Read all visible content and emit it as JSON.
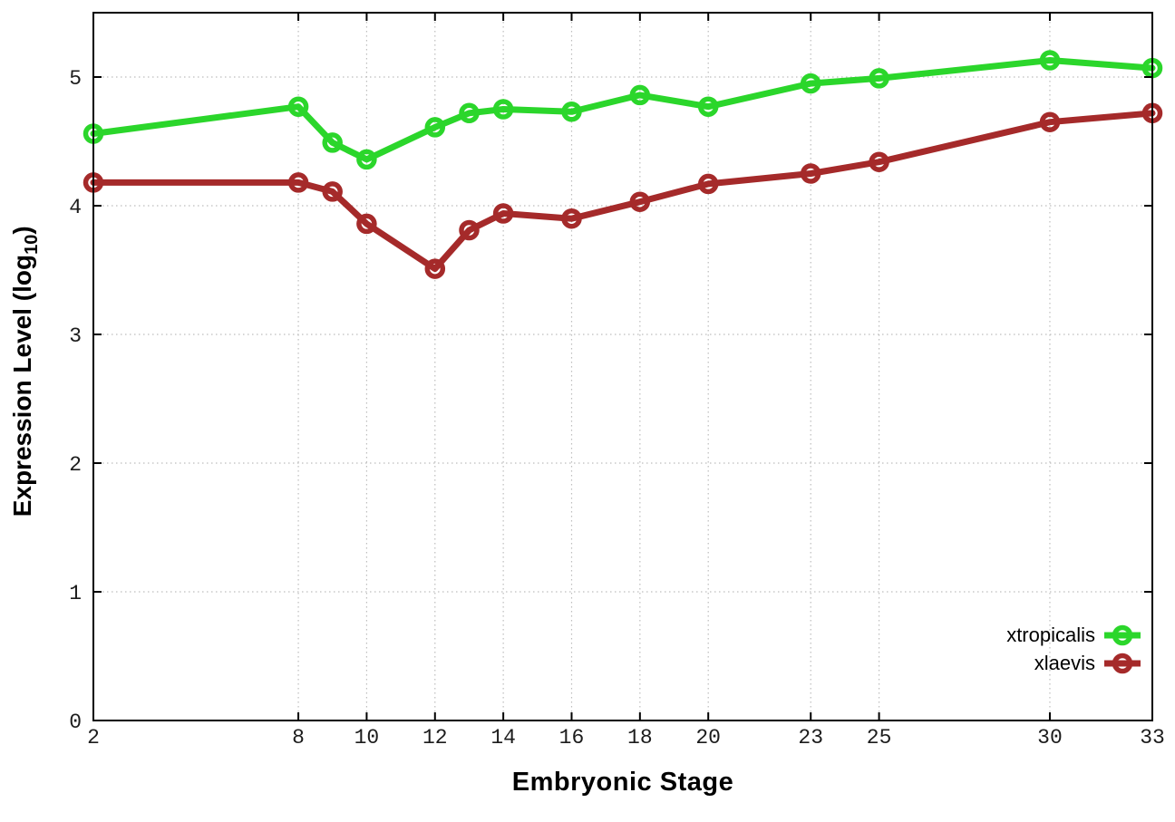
{
  "figure": {
    "background": "#ffffff",
    "axis_color": "#000000",
    "grid_color": "#bdbdbd",
    "tick_label_color": "#1c1c1c",
    "xlabel": "Embryonic Stage",
    "ylabel_prefix": "Expression Level (log",
    "ylabel_sub": "10",
    "ylabel_suffix": ")"
  },
  "chart_data": {
    "type": "line",
    "title": "",
    "xlabel": "Embryonic Stage",
    "ylabel": "Expression Level (log10)",
    "x": [
      2,
      8,
      9,
      10,
      12,
      13,
      14,
      16,
      18,
      20,
      23,
      25,
      30,
      33
    ],
    "xticks": [
      2,
      8,
      10,
      12,
      14,
      16,
      18,
      20,
      23,
      25,
      30,
      33
    ],
    "yticks": [
      0,
      1,
      2,
      3,
      4,
      5
    ],
    "xlim": [
      2,
      33
    ],
    "ylim": [
      0,
      5.5
    ],
    "grid": true,
    "legend_position": "inside bottom-right",
    "marker": "open-circle",
    "series": [
      {
        "name": "xtropicalis",
        "color": "#2bd62b",
        "values": [
          4.56,
          4.77,
          4.49,
          4.36,
          4.61,
          4.72,
          4.75,
          4.73,
          4.86,
          4.77,
          4.95,
          4.99,
          5.13,
          5.07
        ]
      },
      {
        "name": "xlaevis",
        "color": "#a52a2a",
        "values": [
          4.18,
          4.18,
          4.11,
          3.86,
          3.51,
          3.81,
          3.94,
          3.9,
          4.03,
          4.17,
          4.25,
          4.34,
          4.65,
          4.72
        ]
      }
    ]
  }
}
